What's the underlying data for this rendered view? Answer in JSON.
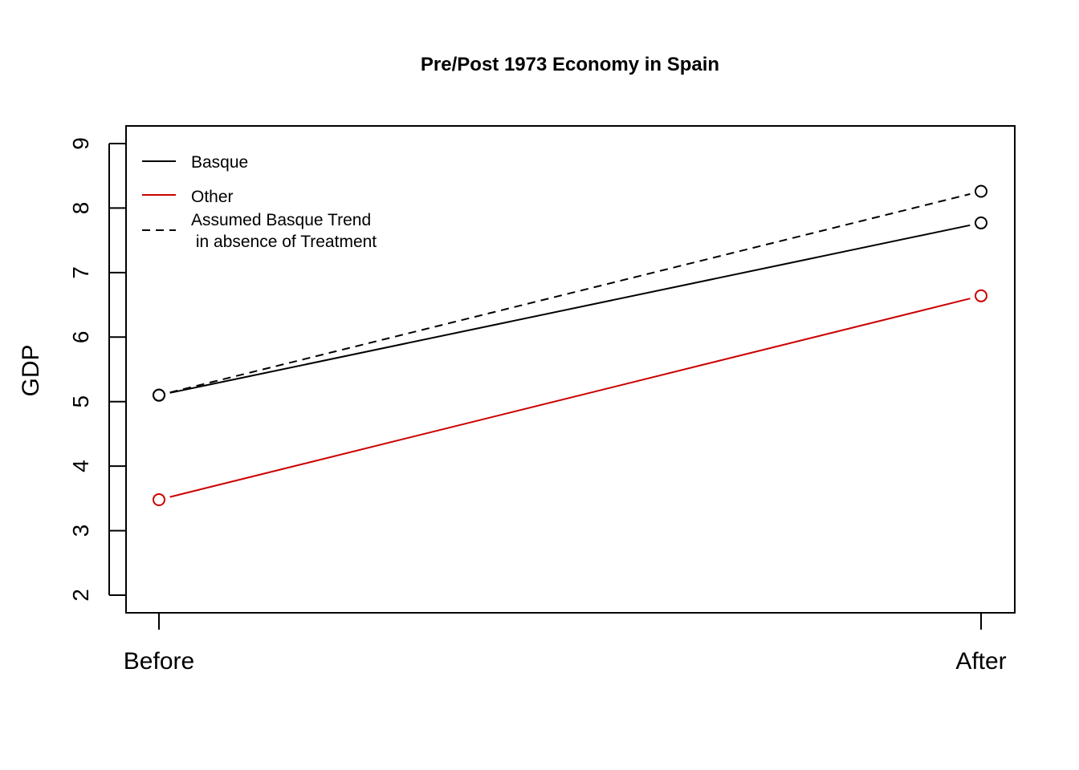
{
  "chart_data": {
    "type": "line",
    "title": "Pre/Post 1973 Economy in Spain",
    "xlabel": "",
    "ylabel": "GDP",
    "categories": [
      "Before",
      "After"
    ],
    "ylim": [
      2,
      9
    ],
    "yticks": [
      2,
      3,
      4,
      5,
      6,
      7,
      8,
      9
    ],
    "series": [
      {
        "name": "Basque",
        "values": [
          5.1,
          7.77
        ],
        "color": "#000000",
        "dash": "solid"
      },
      {
        "name": "Other",
        "values": [
          3.48,
          6.64
        ],
        "color": "#cc0000",
        "dash": "solid"
      },
      {
        "name": "Assumed Basque Trend\n in absence of Treatment",
        "values": [
          5.1,
          8.26
        ],
        "color": "#000000",
        "dash": "dashed"
      }
    ],
    "legend": {
      "placement": "top-left",
      "entries": [
        {
          "label": "Basque",
          "color": "#000000",
          "dash": "solid"
        },
        {
          "label": "Other",
          "color": "#cc0000",
          "dash": "solid"
        },
        {
          "label_lines": [
            "Assumed Basque Trend",
            " in absence of Treatment"
          ],
          "color": "#000000",
          "dash": "dashed"
        }
      ]
    },
    "grid": false
  }
}
